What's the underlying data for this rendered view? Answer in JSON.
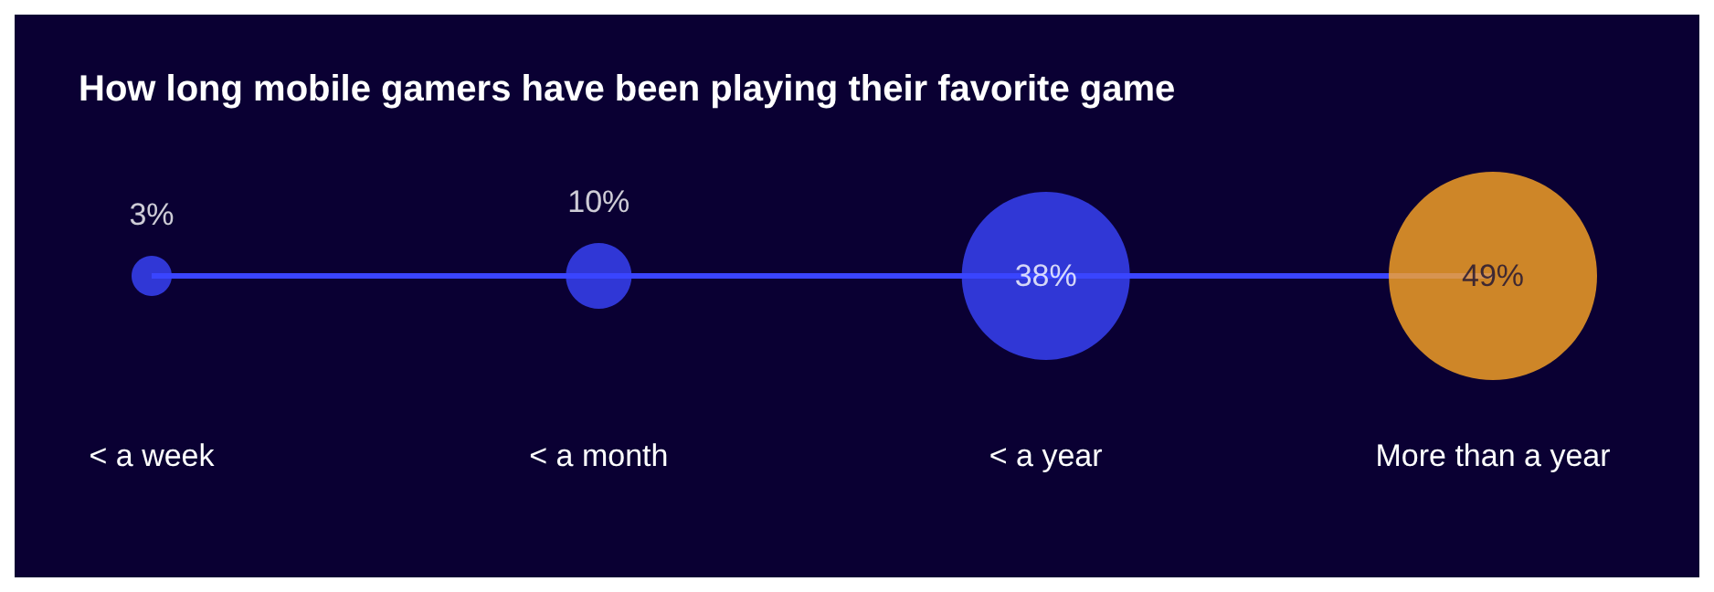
{
  "chart_data": {
    "type": "other",
    "title": "How long mobile gamers have been playing their favorite game",
    "categories": [
      "< a week",
      "< a month",
      "< a year",
      "More than a year"
    ],
    "values": [
      3,
      10,
      38,
      49
    ],
    "value_labels": [
      "3%",
      "10%",
      "38%",
      "49%"
    ],
    "colors": [
      "#3a45ff",
      "#3a45ff",
      "#3a45ff",
      "#ffa726"
    ]
  }
}
